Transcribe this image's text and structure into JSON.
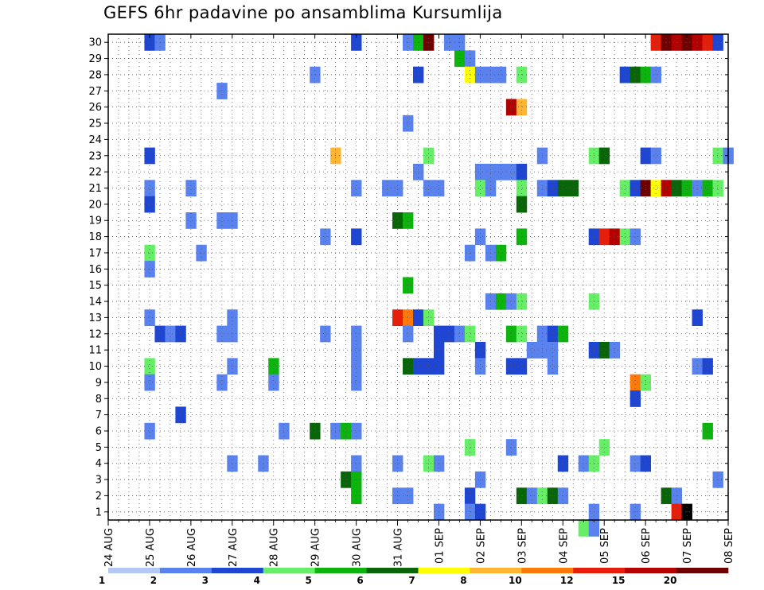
{
  "chart_data": {
    "type": "heatmap",
    "title": "GEFS 6hr padavine po ansamblima Kursumlija",
    "x_tick_labels": [
      "24 AUG",
      "25 AUG",
      "26 AUG",
      "27 AUG",
      "28 AUG",
      "29 AUG",
      "30 AUG",
      "31 AUG",
      "01 SEP",
      "02 SEP",
      "03 SEP",
      "04 SEP",
      "05 SEP",
      "06 SEP",
      "07 SEP",
      "08 SEP"
    ],
    "y_tick_labels": [
      "1",
      "2",
      "3",
      "4",
      "5",
      "6",
      "7",
      "8",
      "9",
      "10",
      "11",
      "12",
      "13",
      "14",
      "15",
      "16",
      "17",
      "18",
      "19",
      "20",
      "21",
      "22",
      "23",
      "24",
      "25",
      "26",
      "27",
      "28",
      "29",
      "30"
    ],
    "x_unit": "6h steps since 24 AUG 00Z",
    "xlim": [
      0,
      60
    ],
    "ylim": [
      0.5,
      30.5
    ],
    "grid": true,
    "legend": {
      "placement": "bottom",
      "labels": [
        "1",
        "2",
        "3",
        "4",
        "5",
        "6",
        "7",
        "8",
        "10",
        "12",
        "15",
        "20"
      ],
      "colors": [
        "#b4c8f5",
        "#5a82ef",
        "#1e46d2",
        "#66ee66",
        "#0db40d",
        "#086608",
        "#ffff00",
        "#ffb432",
        "#ff780a",
        "#e61e0a",
        "#b40000",
        "#6e0000"
      ]
    },
    "cells": [
      [
        4,
        30,
        2
      ],
      [
        5,
        30,
        1
      ],
      [
        24,
        30,
        2
      ],
      [
        29,
        30,
        1
      ],
      [
        30,
        30,
        4
      ],
      [
        31,
        30,
        11
      ],
      [
        33,
        30,
        1
      ],
      [
        34,
        30,
        1
      ],
      [
        53,
        30,
        9
      ],
      [
        54,
        30,
        11
      ],
      [
        55,
        30,
        10
      ],
      [
        56,
        30,
        11
      ],
      [
        57,
        30,
        10
      ],
      [
        58,
        30,
        9
      ],
      [
        59,
        30,
        2
      ],
      [
        34,
        29,
        4
      ],
      [
        35,
        29,
        1
      ],
      [
        20,
        28,
        1
      ],
      [
        30,
        28,
        2
      ],
      [
        35,
        28,
        6
      ],
      [
        36,
        28,
        1
      ],
      [
        37,
        28,
        1
      ],
      [
        38,
        28,
        1
      ],
      [
        40,
        28,
        3
      ],
      [
        50,
        28,
        2
      ],
      [
        51,
        28,
        5
      ],
      [
        52,
        28,
        4
      ],
      [
        53,
        28,
        1
      ],
      [
        39,
        26,
        10
      ],
      [
        40,
        26,
        7
      ],
      [
        11,
        27,
        1
      ],
      [
        29,
        25,
        1
      ],
      [
        4,
        23,
        2
      ],
      [
        22,
        23,
        7
      ],
      [
        31,
        23,
        3
      ],
      [
        42,
        23,
        1
      ],
      [
        47,
        23,
        3
      ],
      [
        48,
        23,
        5
      ],
      [
        52,
        23,
        2
      ],
      [
        53,
        23,
        1
      ],
      [
        59,
        23,
        3
      ],
      [
        60,
        23,
        1
      ],
      [
        30,
        22,
        1
      ],
      [
        36,
        22,
        1
      ],
      [
        37,
        22,
        1
      ],
      [
        38,
        22,
        1
      ],
      [
        39,
        22,
        1
      ],
      [
        40,
        22,
        2
      ],
      [
        4,
        21,
        1
      ],
      [
        8,
        21,
        1
      ],
      [
        24,
        21,
        1
      ],
      [
        27,
        21,
        1
      ],
      [
        28,
        21,
        1
      ],
      [
        31,
        21,
        1
      ],
      [
        32,
        21,
        1
      ],
      [
        36,
        21,
        3
      ],
      [
        37,
        21,
        1
      ],
      [
        40,
        21,
        3
      ],
      [
        42,
        21,
        1
      ],
      [
        43,
        21,
        2
      ],
      [
        44,
        21,
        5
      ],
      [
        45,
        21,
        5
      ],
      [
        50,
        21,
        3
      ],
      [
        51,
        21,
        2
      ],
      [
        52,
        21,
        11
      ],
      [
        53,
        21,
        6
      ],
      [
        54,
        21,
        10
      ],
      [
        55,
        21,
        5
      ],
      [
        56,
        21,
        4
      ],
      [
        57,
        21,
        1
      ],
      [
        58,
        21,
        4
      ],
      [
        59,
        21,
        3
      ],
      [
        4,
        20,
        2
      ],
      [
        40,
        20,
        5
      ],
      [
        8,
        19,
        1
      ],
      [
        11,
        19,
        1
      ],
      [
        12,
        19,
        1
      ],
      [
        28,
        19,
        5
      ],
      [
        29,
        19,
        4
      ],
      [
        21,
        18,
        1
      ],
      [
        24,
        18,
        2
      ],
      [
        36,
        18,
        1
      ],
      [
        40,
        18,
        4
      ],
      [
        47,
        18,
        2
      ],
      [
        48,
        18,
        9
      ],
      [
        49,
        18,
        10
      ],
      [
        50,
        18,
        3
      ],
      [
        51,
        18,
        1
      ],
      [
        4,
        17,
        3
      ],
      [
        9,
        17,
        1
      ],
      [
        35,
        17,
        1
      ],
      [
        37,
        17,
        1
      ],
      [
        38,
        17,
        4
      ],
      [
        4,
        16,
        1
      ],
      [
        29,
        15,
        4
      ],
      [
        37,
        14,
        1
      ],
      [
        38,
        14,
        4
      ],
      [
        39,
        14,
        1
      ],
      [
        40,
        14,
        3
      ],
      [
        47,
        14,
        3
      ],
      [
        4,
        13,
        1
      ],
      [
        12,
        13,
        1
      ],
      [
        28,
        13,
        9
      ],
      [
        29,
        13,
        8
      ],
      [
        30,
        13,
        2
      ],
      [
        31,
        13,
        3
      ],
      [
        57,
        13,
        2
      ],
      [
        5,
        12,
        2
      ],
      [
        6,
        12,
        1
      ],
      [
        7,
        12,
        2
      ],
      [
        11,
        12,
        1
      ],
      [
        12,
        12,
        1
      ],
      [
        21,
        12,
        1
      ],
      [
        24,
        12,
        1
      ],
      [
        29,
        12,
        1
      ],
      [
        32,
        12,
        2
      ],
      [
        33,
        12,
        2
      ],
      [
        34,
        12,
        1
      ],
      [
        35,
        12,
        3
      ],
      [
        39,
        12,
        4
      ],
      [
        40,
        12,
        3
      ],
      [
        42,
        12,
        1
      ],
      [
        43,
        12,
        2
      ],
      [
        44,
        12,
        4
      ],
      [
        24,
        11,
        1
      ],
      [
        32,
        11,
        2
      ],
      [
        36,
        11,
        2
      ],
      [
        41,
        11,
        1
      ],
      [
        42,
        11,
        1
      ],
      [
        43,
        11,
        1
      ],
      [
        47,
        11,
        2
      ],
      [
        48,
        11,
        5
      ],
      [
        49,
        11,
        1
      ],
      [
        4,
        10,
        3
      ],
      [
        12,
        10,
        1
      ],
      [
        16,
        10,
        4
      ],
      [
        24,
        10,
        1
      ],
      [
        29,
        10,
        5
      ],
      [
        30,
        10,
        2
      ],
      [
        31,
        10,
        2
      ],
      [
        32,
        10,
        2
      ],
      [
        36,
        10,
        1
      ],
      [
        39,
        10,
        2
      ],
      [
        40,
        10,
        2
      ],
      [
        43,
        10,
        1
      ],
      [
        57,
        10,
        1
      ],
      [
        58,
        10,
        2
      ],
      [
        4,
        9,
        1
      ],
      [
        11,
        9,
        1
      ],
      [
        16,
        9,
        1
      ],
      [
        24,
        9,
        1
      ],
      [
        51,
        9,
        8
      ],
      [
        52,
        9,
        3
      ],
      [
        51,
        8,
        2
      ],
      [
        7,
        7,
        2
      ],
      [
        4,
        6,
        1
      ],
      [
        17,
        6,
        1
      ],
      [
        20,
        6,
        5
      ],
      [
        22,
        6,
        1
      ],
      [
        23,
        6,
        4
      ],
      [
        24,
        6,
        1
      ],
      [
        58,
        6,
        4
      ],
      [
        35,
        5,
        3
      ],
      [
        39,
        5,
        1
      ],
      [
        48,
        5,
        3
      ],
      [
        12,
        4,
        1
      ],
      [
        15,
        4,
        1
      ],
      [
        24,
        4,
        1
      ],
      [
        28,
        4,
        1
      ],
      [
        31,
        4,
        3
      ],
      [
        32,
        4,
        1
      ],
      [
        44,
        4,
        2
      ],
      [
        46,
        4,
        1
      ],
      [
        47,
        4,
        3
      ],
      [
        51,
        4,
        1
      ],
      [
        52,
        4,
        2
      ],
      [
        23,
        3,
        5
      ],
      [
        24,
        3,
        4
      ],
      [
        36,
        3,
        1
      ],
      [
        59,
        3,
        1
      ],
      [
        24,
        2,
        4
      ],
      [
        28,
        2,
        1
      ],
      [
        29,
        2,
        1
      ],
      [
        35,
        2,
        2
      ],
      [
        40,
        2,
        5
      ],
      [
        41,
        2,
        1
      ],
      [
        42,
        2,
        3
      ],
      [
        43,
        2,
        5
      ],
      [
        44,
        2,
        1
      ],
      [
        54,
        2,
        5
      ],
      [
        55,
        2,
        1
      ],
      [
        32,
        1,
        1
      ],
      [
        35,
        1,
        1
      ],
      [
        36,
        1,
        2
      ],
      [
        47,
        1,
        1
      ],
      [
        51,
        1,
        1
      ],
      [
        55,
        1,
        9
      ],
      [
        56,
        1,
        12
      ],
      [
        46,
        0,
        3
      ],
      [
        47,
        0,
        1
      ]
    ]
  }
}
